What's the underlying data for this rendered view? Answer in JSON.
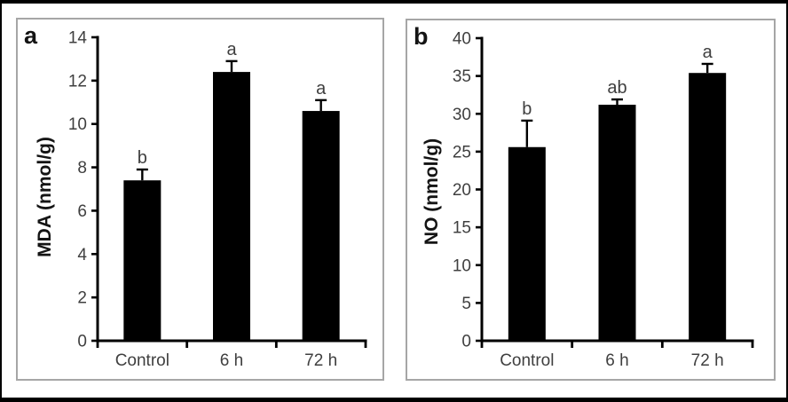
{
  "figure": {
    "description_labels": {
      "panel_a": "a",
      "panel_b": "b"
    }
  },
  "colors": {
    "bar": "#000000",
    "axis": "#000000",
    "tick_label": "#3f3f3f",
    "sig_letter": "#3f3f3f",
    "panel_border": "#a6a6a6",
    "figure_border": "#000000",
    "background": "#ffffff"
  },
  "chart_data": [
    {
      "type": "bar",
      "panel_label": "a",
      "categories": [
        "Control",
        "6 h",
        "72 h"
      ],
      "values": [
        7.4,
        12.4,
        10.6
      ],
      "errors_plus": [
        0.5,
        0.5,
        0.5
      ],
      "sig_labels": [
        "b",
        "a",
        "a"
      ],
      "xlabel": "",
      "ylabel": "MDA (nmol/g)",
      "ylim": [
        0,
        14
      ],
      "ytick_step": 2,
      "ytick_labels": [
        "0",
        "2",
        "4",
        "6",
        "8",
        "10",
        "12",
        "14"
      ],
      "grid": false,
      "legend": false,
      "bar_color": "#000000"
    },
    {
      "type": "bar",
      "panel_label": "b",
      "categories": [
        "Control",
        "6 h",
        "72 h"
      ],
      "values": [
        25.6,
        31.2,
        35.4
      ],
      "errors_plus": [
        3.5,
        0.7,
        1.2
      ],
      "sig_labels": [
        "b",
        "ab",
        "a"
      ],
      "xlabel": "",
      "ylabel": "NO (nmol/g)",
      "ylim": [
        0,
        40
      ],
      "ytick_step": 5,
      "ytick_labels": [
        "0",
        "5",
        "10",
        "15",
        "20",
        "25",
        "30",
        "35",
        "40"
      ],
      "grid": false,
      "legend": false,
      "bar_color": "#000000"
    }
  ]
}
